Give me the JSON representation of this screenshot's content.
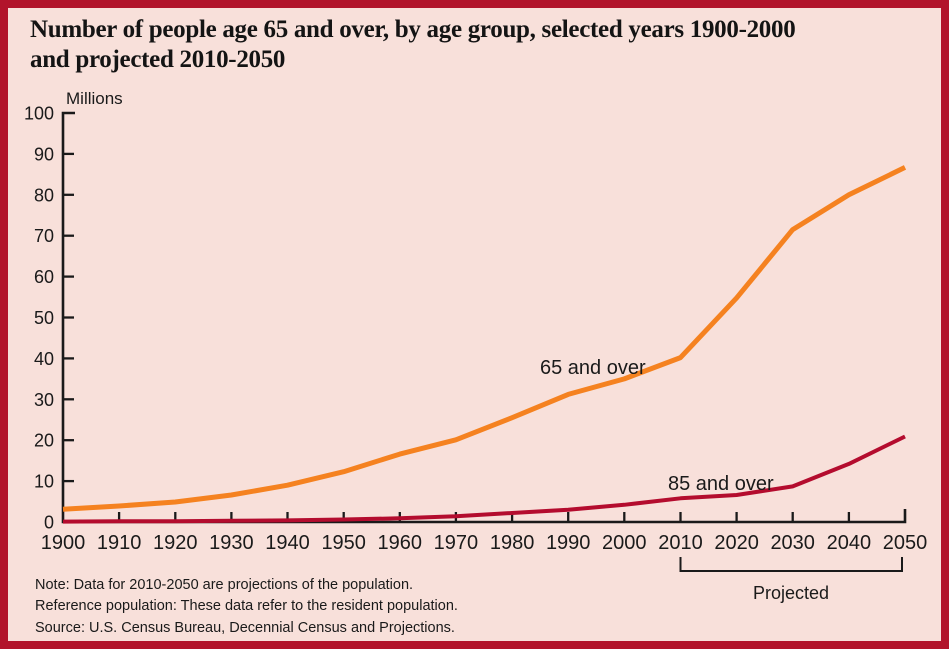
{
  "title_lines": [
    "Number of people age 65 and over, by age group, selected years 1900-2000",
    "and projected 2010-2050"
  ],
  "notes": [
    "Note:  Data for 2010-2050 are projections of the population.",
    "Reference population:  These data refer to the resident population.",
    "Source:  U.S. Census Bureau, Decennial Census and Projections."
  ],
  "colors": {
    "frame_border": "#b2142b",
    "panel_background": "#f8e0da",
    "axis": "#1a1a1a",
    "series_65_and_over": "#f58220",
    "series_85_and_over": "#b40c2e",
    "text": "#1a1a1a"
  },
  "chart_data": {
    "type": "line",
    "title": "Number of people age 65 and over, by age group, selected years 1900-2000 and projected 2010-2050",
    "xlabel": "",
    "ylabel": "Millions",
    "ylim": [
      0,
      100
    ],
    "ytick_step": 10,
    "grid": false,
    "legend_position": "inline-labels-on-lines",
    "x": [
      1900,
      1910,
      1920,
      1930,
      1940,
      1950,
      1960,
      1970,
      1980,
      1990,
      2000,
      2010,
      2020,
      2030,
      2040,
      2050
    ],
    "series": [
      {
        "name": "65 and over",
        "color": "#f58220",
        "stroke_width": 5,
        "values": [
          3.1,
          3.9,
          4.9,
          6.6,
          9.0,
          12.3,
          16.6,
          20.1,
          25.5,
          31.2,
          35.0,
          40.2,
          54.8,
          71.5,
          80.0,
          86.7
        ]
      },
      {
        "name": "85 and over",
        "color": "#b40c2e",
        "stroke_width": 4,
        "values": [
          0.1,
          0.2,
          0.2,
          0.3,
          0.4,
          0.6,
          0.9,
          1.4,
          2.2,
          3.0,
          4.2,
          5.8,
          6.6,
          8.7,
          14.2,
          20.9
        ]
      }
    ],
    "projected_label": "Projected",
    "projected_range": [
      2010,
      2050
    ]
  }
}
